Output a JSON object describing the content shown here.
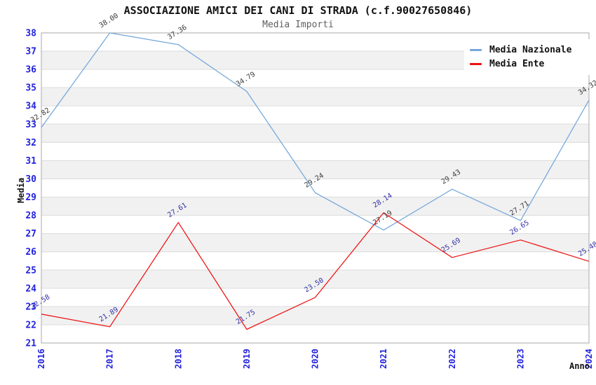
{
  "chart_data": {
    "type": "line",
    "title": "ASSOCIAZIONE AMICI DEI CANI DI STRADA (c.f.90027650846)",
    "subtitle": "Media Importi",
    "xlabel": "Anno",
    "ylabel": "Media",
    "x_categories": [
      "2016",
      "2017",
      "2018",
      "2019",
      "2020",
      "2021",
      "2022",
      "2023",
      "2024"
    ],
    "ylim": [
      21,
      38
    ],
    "y_ticks": [
      "21",
      "22",
      "23",
      "24",
      "25",
      "26",
      "27",
      "28",
      "29",
      "30",
      "31",
      "32",
      "33",
      "34",
      "35",
      "36",
      "37",
      "38"
    ],
    "grid": "horizontal-gridlines-with-alternating-bands",
    "legend_position": "top-right",
    "series": [
      {
        "name": "Media Nazionale",
        "color": "#74a7db",
        "label_color": "#3c3c3c",
        "values": [
          32.82,
          38.0,
          37.36,
          34.79,
          29.24,
          27.19,
          29.43,
          27.71,
          34.32
        ],
        "labels": [
          "32.82",
          "38.00",
          "37.36",
          "34.79",
          "29.24",
          "27.19",
          "29.43",
          "27.71",
          "34.32"
        ]
      },
      {
        "name": "Media Ente",
        "color": "#ee1111",
        "label_color": "#3333a6",
        "values": [
          22.58,
          21.89,
          27.61,
          21.75,
          23.5,
          28.14,
          25.69,
          26.65,
          25.48
        ],
        "labels": [
          "22.58",
          "21.89",
          "27.61",
          "21.75",
          "23.50",
          "28.14",
          "25.69",
          "26.65",
          "25.48"
        ]
      }
    ],
    "colors": {
      "axis_tick_label": "#2222dd",
      "band_fill": "#f1f1f1",
      "gridline": "#dcdcdc",
      "plot_border": "#aaaaaa",
      "title_text": "#111111",
      "subtitle_text": "#5f5f5f"
    }
  }
}
